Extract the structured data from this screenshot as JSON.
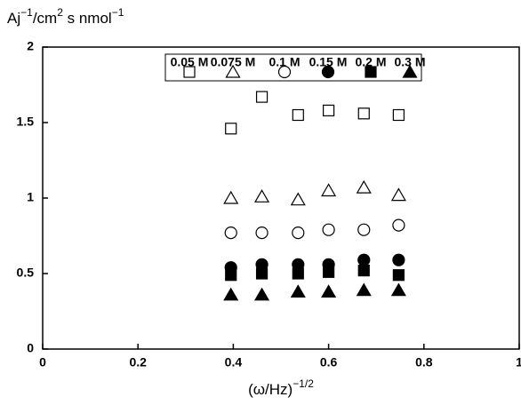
{
  "chart_data": {
    "type": "scatter",
    "ylabel_parts": [
      "Aj",
      "−1",
      "/cm",
      "2",
      " s nmol",
      "−1"
    ],
    "xlabel_parts": [
      "(ω/Hz)",
      "−1/2"
    ],
    "x": [
      0.395,
      0.46,
      0.536,
      0.6,
      0.674,
      0.747
    ],
    "series": [
      {
        "name": "0.05 M",
        "marker": "square-open",
        "color": "#000000",
        "values": [
          1.46,
          1.67,
          1.55,
          1.58,
          1.56,
          1.55
        ]
      },
      {
        "name": "0.075 M",
        "marker": "triangle-open",
        "color": "#000000",
        "values": [
          1.0,
          1.01,
          0.99,
          1.05,
          1.07,
          1.02
        ]
      },
      {
        "name": "0.1 M",
        "marker": "circle-open",
        "color": "#000000",
        "values": [
          0.77,
          0.77,
          0.77,
          0.79,
          0.79,
          0.82
        ]
      },
      {
        "name": "0.15 M",
        "marker": "circle-filled",
        "color": "#000000",
        "values": [
          0.54,
          0.56,
          0.56,
          0.56,
          0.59,
          0.59
        ]
      },
      {
        "name": "0.2 M",
        "marker": "square-filled",
        "color": "#000000",
        "values": [
          0.49,
          0.5,
          0.5,
          0.51,
          0.52,
          0.49
        ]
      },
      {
        "name": "0.3 M",
        "marker": "triangle-filled",
        "color": "#000000",
        "values": [
          0.36,
          0.36,
          0.38,
          0.38,
          0.39,
          0.39
        ]
      }
    ],
    "xlim": [
      0,
      1
    ],
    "ylim": [
      0,
      2
    ],
    "xticks": [
      0,
      0.2,
      0.4,
      0.6,
      0.8,
      1
    ],
    "yticks": [
      0,
      0.5,
      1,
      1.5,
      2
    ],
    "legend": "top"
  }
}
